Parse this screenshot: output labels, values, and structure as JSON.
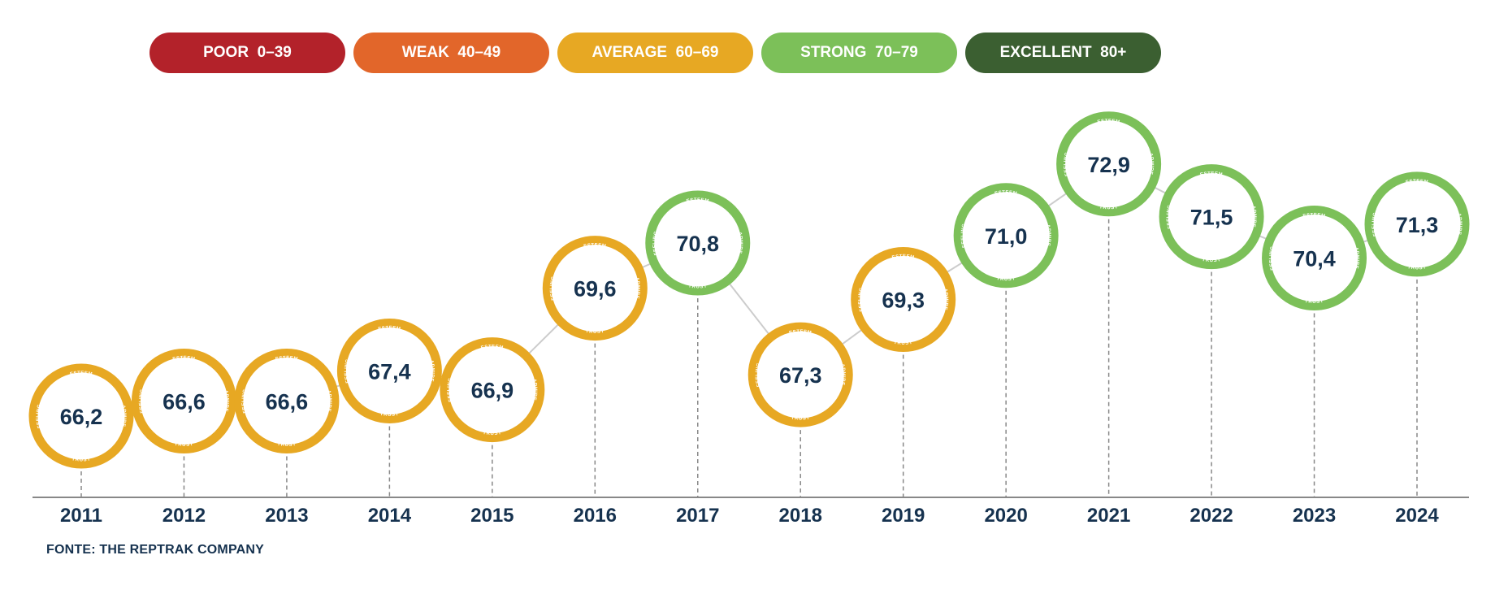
{
  "legend": [
    {
      "label": "POOR",
      "range": "0–39",
      "color": "#b3222a"
    },
    {
      "label": "WEAK",
      "range": "40–49",
      "color": "#e2662a"
    },
    {
      "label": "AVERAGE",
      "range": "60–69",
      "color": "#e7a823"
    },
    {
      "label": "STRONG",
      "range": "70–79",
      "color": "#7cc059"
    },
    {
      "label": "EXCELLENT",
      "range": "80+",
      "color": "#3b5f31"
    }
  ],
  "ring_labels": {
    "top": "ESTEEM",
    "right": "ADMIRE",
    "bottom": "TRUST",
    "left": "FEELING"
  },
  "colors": {
    "text": "#16324f",
    "average": "#e7a823",
    "strong": "#7cc059",
    "axis": "#888888",
    "connector": "#cccccc"
  },
  "chart_data": {
    "type": "line",
    "x": [
      "2011",
      "2012",
      "2013",
      "2014",
      "2015",
      "2016",
      "2017",
      "2018",
      "2019",
      "2020",
      "2021",
      "2022",
      "2023",
      "2024"
    ],
    "values": [
      66.2,
      66.6,
      66.6,
      67.4,
      66.9,
      69.6,
      70.8,
      67.3,
      69.3,
      71.0,
      72.9,
      71.5,
      70.4,
      71.3
    ],
    "value_labels": [
      "66,2",
      "66,6",
      "66,6",
      "67,4",
      "66,9",
      "69,6",
      "70,8",
      "67,3",
      "69,3",
      "71,0",
      "72,9",
      "71,5",
      "70,4",
      "71,3"
    ],
    "title": "",
    "xlabel": "",
    "ylabel": "",
    "grid": false
  },
  "source": "FONTE: THE REPTRAK COMPANY"
}
